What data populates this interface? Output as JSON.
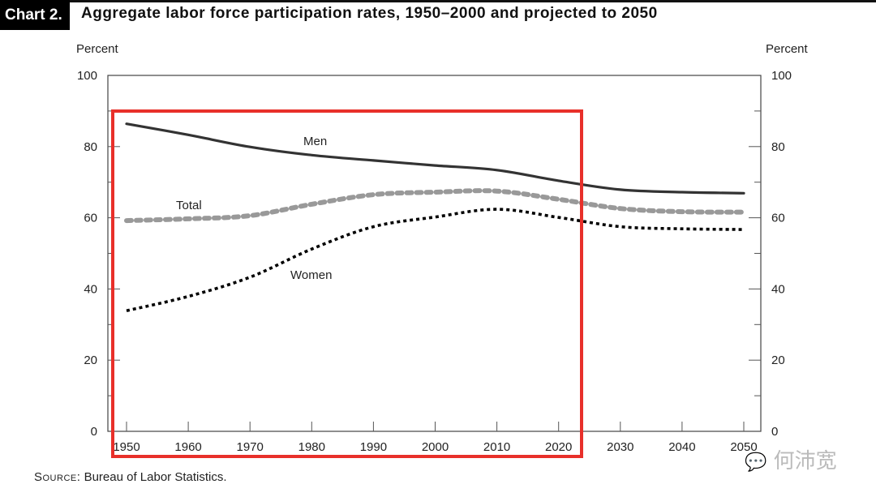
{
  "header": {
    "chart_number": "Chart 2.",
    "title": "Aggregate labor force participation rates, 1950–2000 and projected to 2050"
  },
  "source": {
    "label": "Source:",
    "text": "Bureau of Labor Statistics."
  },
  "watermark": {
    "icon": "wechat-icon",
    "text": "何沛宽"
  },
  "highlight": {
    "color": "#e8302a",
    "from_year": 1950,
    "to_year": 2020
  },
  "chart_data": {
    "type": "line",
    "title": "Aggregate labor force participation rates, 1950–2000 and projected to 2050",
    "xlabel": "",
    "ylabel": "Percent",
    "ylabel_right": "Percent",
    "x": [
      1950,
      1960,
      1970,
      1980,
      1990,
      2000,
      2010,
      2020,
      2030,
      2040,
      2050
    ],
    "x_tick_labels": [
      "1950",
      "1960",
      "1970",
      "1980",
      "1990",
      "2000",
      "2010",
      "2020",
      "2030",
      "2040",
      "2050"
    ],
    "ylim": [
      0,
      100
    ],
    "y_ticks": [
      0,
      20,
      40,
      60,
      80,
      100
    ],
    "y_tick_labels": [
      "0",
      "20",
      "40",
      "60",
      "80",
      "100"
    ],
    "grid": false,
    "legend": "inline-labels",
    "series": [
      {
        "name": "Men",
        "style": "solid",
        "color": "#333333",
        "values": [
          86.4,
          83.3,
          79.9,
          77.6,
          76.1,
          74.7,
          73.4,
          70.4,
          67.9,
          67.2,
          66.9
        ]
      },
      {
        "name": "Total",
        "style": "gray-dotted",
        "color": "#999999",
        "values": [
          59.2,
          59.7,
          60.6,
          63.8,
          66.5,
          67.2,
          67.5,
          65.2,
          62.6,
          61.7,
          61.6
        ]
      },
      {
        "name": "Women",
        "style": "black-dotted",
        "color": "#000000",
        "values": [
          33.9,
          37.9,
          43.3,
          51.2,
          57.5,
          60.2,
          62.4,
          60.1,
          57.5,
          56.9,
          56.7
        ]
      }
    ]
  }
}
